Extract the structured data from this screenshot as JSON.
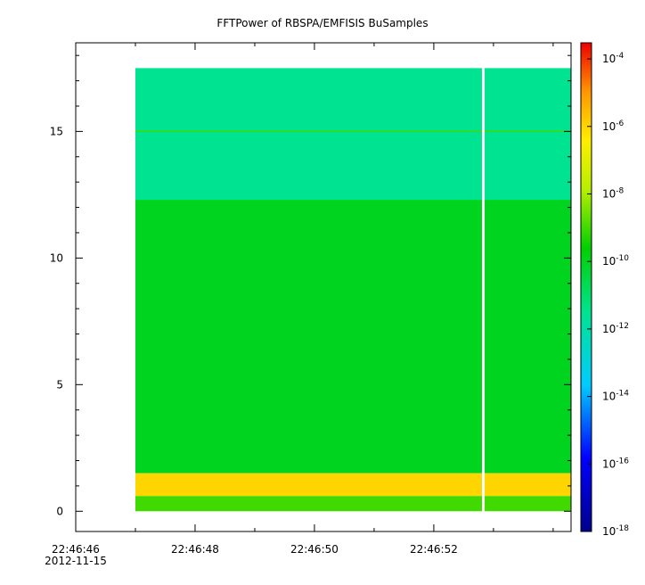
{
  "chart_data": {
    "type": "heatmap",
    "title": "FFTPower of RBSPA/EMFISIS  BuSamples",
    "xlabel": "",
    "ylabel": "",
    "x_ticks": [
      {
        "label": "22:46:46",
        "sublabel": "2012-11-15",
        "t": 0
      },
      {
        "label": "22:46:48",
        "t": 2
      },
      {
        "label": "22:46:50",
        "t": 4
      },
      {
        "label": "22:46:52",
        "t": 6
      }
    ],
    "x_range_seconds_after_22_46_46": [
      0,
      8.3
    ],
    "y_ticks": [
      0,
      5,
      10,
      15
    ],
    "ylim": [
      -0.8,
      18.5
    ],
    "colorbar": {
      "scale": "log",
      "range": [
        1e-18,
        0.0003
      ],
      "tick_labels": [
        {
          "base": "10",
          "exp": "-4",
          "value": 0.0001
        },
        {
          "base": "10",
          "exp": "-6",
          "value": 1e-06
        },
        {
          "base": "10",
          "exp": "-8",
          "value": 1e-08
        },
        {
          "base": "10",
          "exp": "-10",
          "value": 1e-10
        },
        {
          "base": "10",
          "exp": "-12",
          "value": 1e-12
        },
        {
          "base": "10",
          "exp": "-14",
          "value": 1e-14
        },
        {
          "base": "10",
          "exp": "-16",
          "value": 1e-16
        },
        {
          "base": "10",
          "exp": "-18",
          "value": 1e-18
        }
      ]
    },
    "data_time_extent": [
      1.0,
      8.3
    ],
    "data_freq_extent": [
      0,
      17.5
    ],
    "data_gap_time": 6.83,
    "bands": [
      {
        "freq_range": [
          12.3,
          17.5
        ],
        "typical_power": 3e-12
      },
      {
        "freq_range": [
          1.5,
          12.3
        ],
        "typical_power": 1e-10
      },
      {
        "freq_range": [
          0.6,
          1.5
        ],
        "typical_power": 1e-06
      },
      {
        "freq_range": [
          0,
          0.6
        ],
        "typical_power": 1e-09
      }
    ],
    "lines": [
      {
        "freq": 15.0,
        "typical_power": 1e-09
      }
    ]
  }
}
